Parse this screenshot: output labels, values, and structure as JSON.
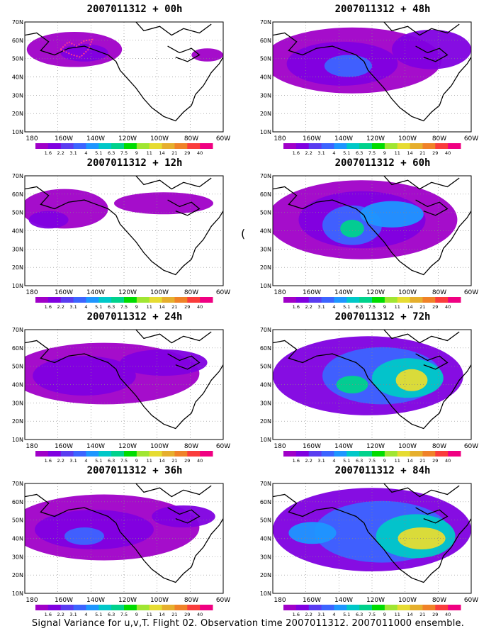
{
  "panels": [
    {
      "title": "2007011312 + 00h",
      "level": 0
    },
    {
      "title": "2007011312 + 48h",
      "level": 3
    },
    {
      "title": "2007011312 + 12h",
      "level": 1
    },
    {
      "title": "2007011312 + 60h",
      "level": 4
    },
    {
      "title": "2007011312 + 24h",
      "level": 2
    },
    {
      "title": "2007011312 + 72h",
      "level": 5
    },
    {
      "title": "2007011312 + 36h",
      "level": 2
    },
    {
      "title": "2007011312 + 84h",
      "level": 6
    }
  ],
  "lat_labels": [
    "70N",
    "60N",
    "50N",
    "40N",
    "30N",
    "20N",
    "10N"
  ],
  "lon_labels": [
    "180",
    "160W",
    "140W",
    "120W",
    "100W",
    "80W",
    "60W"
  ],
  "colorbar_labels": [
    "1.6",
    "2.2",
    "3.1",
    "4",
    "5.1",
    "6.3",
    "7.5",
    "9",
    "11",
    "14",
    "21",
    "29",
    "40"
  ],
  "colorbar_colors": [
    "#a000c8",
    "#8000e0",
    "#5a3cf0",
    "#3c64ff",
    "#1e96ff",
    "#00c8c8",
    "#00d28c",
    "#00dc00",
    "#a0e632",
    "#e6dc32",
    "#e6af2d",
    "#f08228",
    "#fa3c3c",
    "#f00082"
  ],
  "footer": "Signal Variance for u,v,T. Flight 02. Observation time 2007011312. 2007011000 ensemble.",
  "stray_glyph": "("
}
